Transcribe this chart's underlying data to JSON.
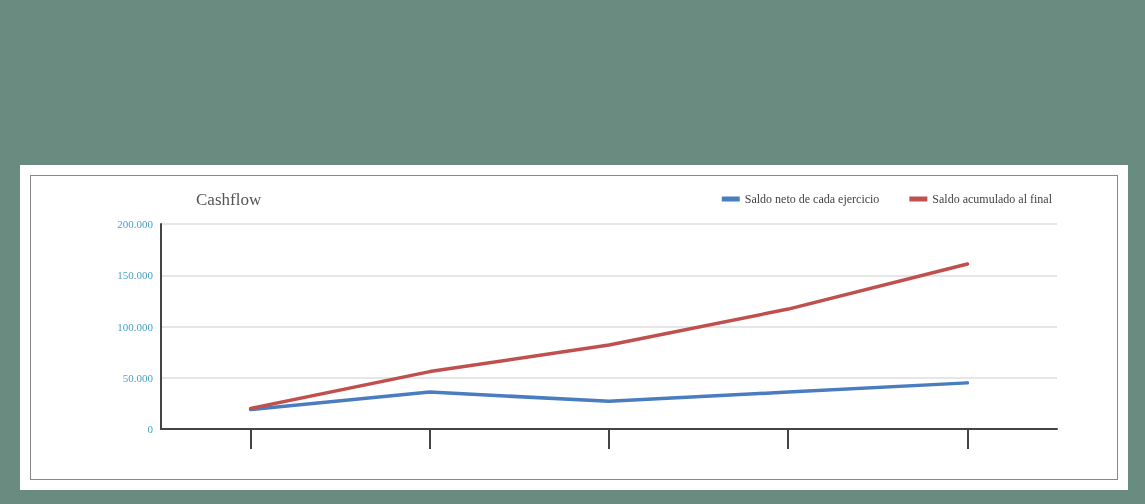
{
  "chart_data": {
    "type": "line",
    "title": "Cashflow",
    "categories": [
      null,
      null,
      null,
      null,
      null
    ],
    "series": [
      {
        "name": "Saldo neto de cada ejercicio",
        "color": "#4a7cc0",
        "values": [
          19000,
          36000,
          27000,
          36000,
          45000
        ]
      },
      {
        "name": "Saldo acumulado al final",
        "color": "#c0504d",
        "values": [
          20000,
          56000,
          82000,
          117000,
          161000
        ]
      }
    ],
    "ylim": [
      0,
      200000
    ],
    "yticks": [
      {
        "value": 0,
        "label": "0"
      },
      {
        "value": 50000,
        "label": "50.000"
      },
      {
        "value": 100000,
        "label": "100.000"
      },
      {
        "value": 150000,
        "label": "150.000"
      },
      {
        "value": 200000,
        "label": "200.000"
      }
    ],
    "grid": "y",
    "legend": "top right",
    "marker": "none",
    "line_style": "solid"
  }
}
